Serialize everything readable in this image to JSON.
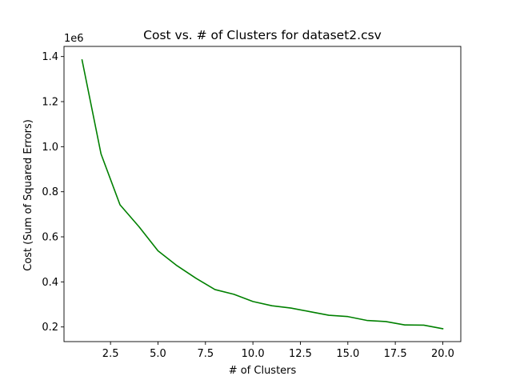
{
  "chart_data": {
    "type": "line",
    "title": "Cost vs. # of Clusters for dataset2.csv",
    "xlabel": "# of Clusters",
    "ylabel": "Cost (Sum of Squared Errors)",
    "y_offset_label": "1e6",
    "xlim": [
      0.05,
      20.95
    ],
    "ylim": [
      0.135,
      1.445
    ],
    "x_ticks": [
      2.5,
      5.0,
      7.5,
      10.0,
      12.5,
      15.0,
      17.5,
      20.0
    ],
    "x_tick_labels": [
      "2.5",
      "5.0",
      "7.5",
      "10.0",
      "12.5",
      "15.0",
      "17.5",
      "20.0"
    ],
    "y_ticks": [
      0.2,
      0.4,
      0.6,
      0.8,
      1.0,
      1.2,
      1.4
    ],
    "y_tick_labels": [
      "0.2",
      "0.4",
      "0.6",
      "0.8",
      "1.0",
      "1.2",
      "1.4"
    ],
    "grid": false,
    "series": [
      {
        "color": "#008000",
        "x": [
          1,
          2,
          3,
          4,
          5,
          6,
          7,
          8,
          9,
          10,
          11,
          12,
          13,
          14,
          15,
          16,
          17,
          18,
          19,
          20
        ],
        "y": [
          1.385,
          0.968,
          0.742,
          0.645,
          0.538,
          0.472,
          0.416,
          0.366,
          0.345,
          0.313,
          0.294,
          0.284,
          0.268,
          0.252,
          0.246,
          0.229,
          0.224,
          0.209,
          0.208,
          0.192
        ]
      }
    ]
  }
}
